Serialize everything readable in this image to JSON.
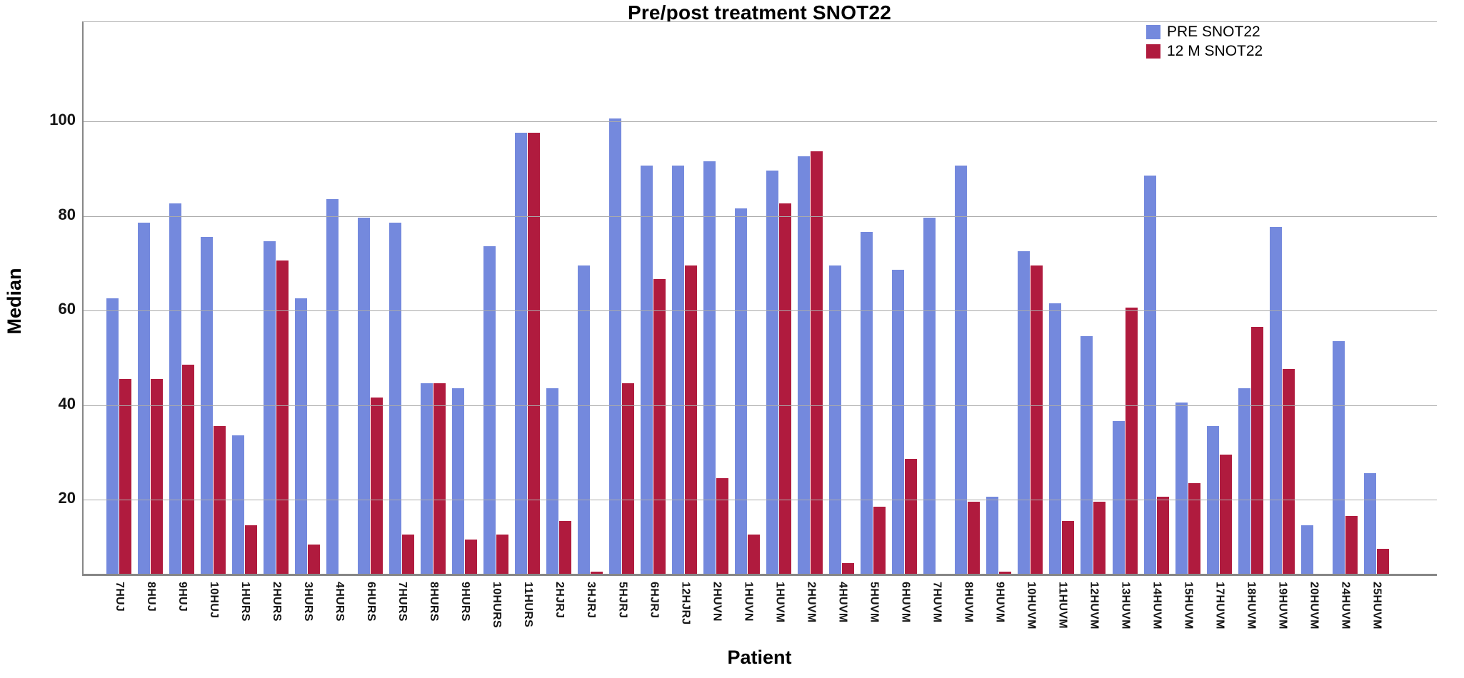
{
  "title": "Pre/post treatment SNOT22",
  "ylabel": "Median",
  "xlabel": "Patient",
  "colors": {
    "pre_blue": "#7489DD",
    "post_red": "#B01B3E",
    "gridline": "#ABABAB",
    "axis": "#878787"
  },
  "legend": {
    "position": "top-right",
    "entries": [
      {
        "label": "PRE SNOT22",
        "color": "#7489DD"
      },
      {
        "label": "12 M SNOT22",
        "color": "#B01B3E"
      }
    ]
  },
  "chart_data": {
    "type": "bar",
    "title": "Pre/post treatment SNOT22",
    "xlabel": "Patient",
    "ylabel": "Median",
    "grid": true,
    "legend_position": "top-right",
    "yticks": [
      20,
      40,
      60,
      80,
      100
    ],
    "ylim": [
      0,
      120
    ],
    "categories": [
      "7HUJ",
      "8HUJ",
      "9HUJ",
      "10HUJ",
      "1HURS",
      "2HURS",
      "3HURS",
      "4HURS",
      "6HURS",
      "7HURS",
      "8HURS",
      "9HURS",
      "10HURS",
      "11HURS",
      "2HJRJ",
      "3HJRJ",
      "5HJRJ",
      "6HJRJ",
      "12HJRJ",
      "2HUVN",
      "1HUVN",
      "1HUVM",
      "2HUVM",
      "4HUVM",
      "5HUVM",
      "6HUVM",
      "7HUVM",
      "8HUVM",
      "9HUVM",
      "10HUVM",
      "11HUVM",
      "12HUVM",
      "13HUVM",
      "14HUVM",
      "15HUVM",
      "17HUVM",
      "18HUVM",
      "19HUVM",
      "20HUVM",
      "24HUVM",
      "25HUVM"
    ],
    "series": [
      {
        "name": "PRE SNOT22",
        "color": "#7489DD",
        "values": [
          62,
          78,
          82,
          75,
          33,
          74,
          62,
          83,
          79,
          78,
          44,
          43,
          73,
          97,
          43,
          69,
          100,
          90,
          90,
          91,
          81,
          89,
          92,
          69,
          76,
          68,
          79,
          90,
          20,
          72,
          61,
          54,
          36,
          88,
          40,
          35,
          43,
          77,
          14,
          53,
          25
        ]
      },
      {
        "name": "12 M SNOT22",
        "color": "#B01B3E",
        "values": [
          45,
          45,
          48,
          35,
          14,
          70,
          10,
          null,
          41,
          12,
          44,
          11,
          12,
          97,
          15,
          2,
          44,
          66,
          69,
          24,
          12,
          82,
          93,
          6,
          18,
          28,
          null,
          19,
          3,
          69,
          15,
          19,
          60,
          20,
          23,
          29,
          56,
          47,
          null,
          16,
          9
        ]
      }
    ]
  }
}
